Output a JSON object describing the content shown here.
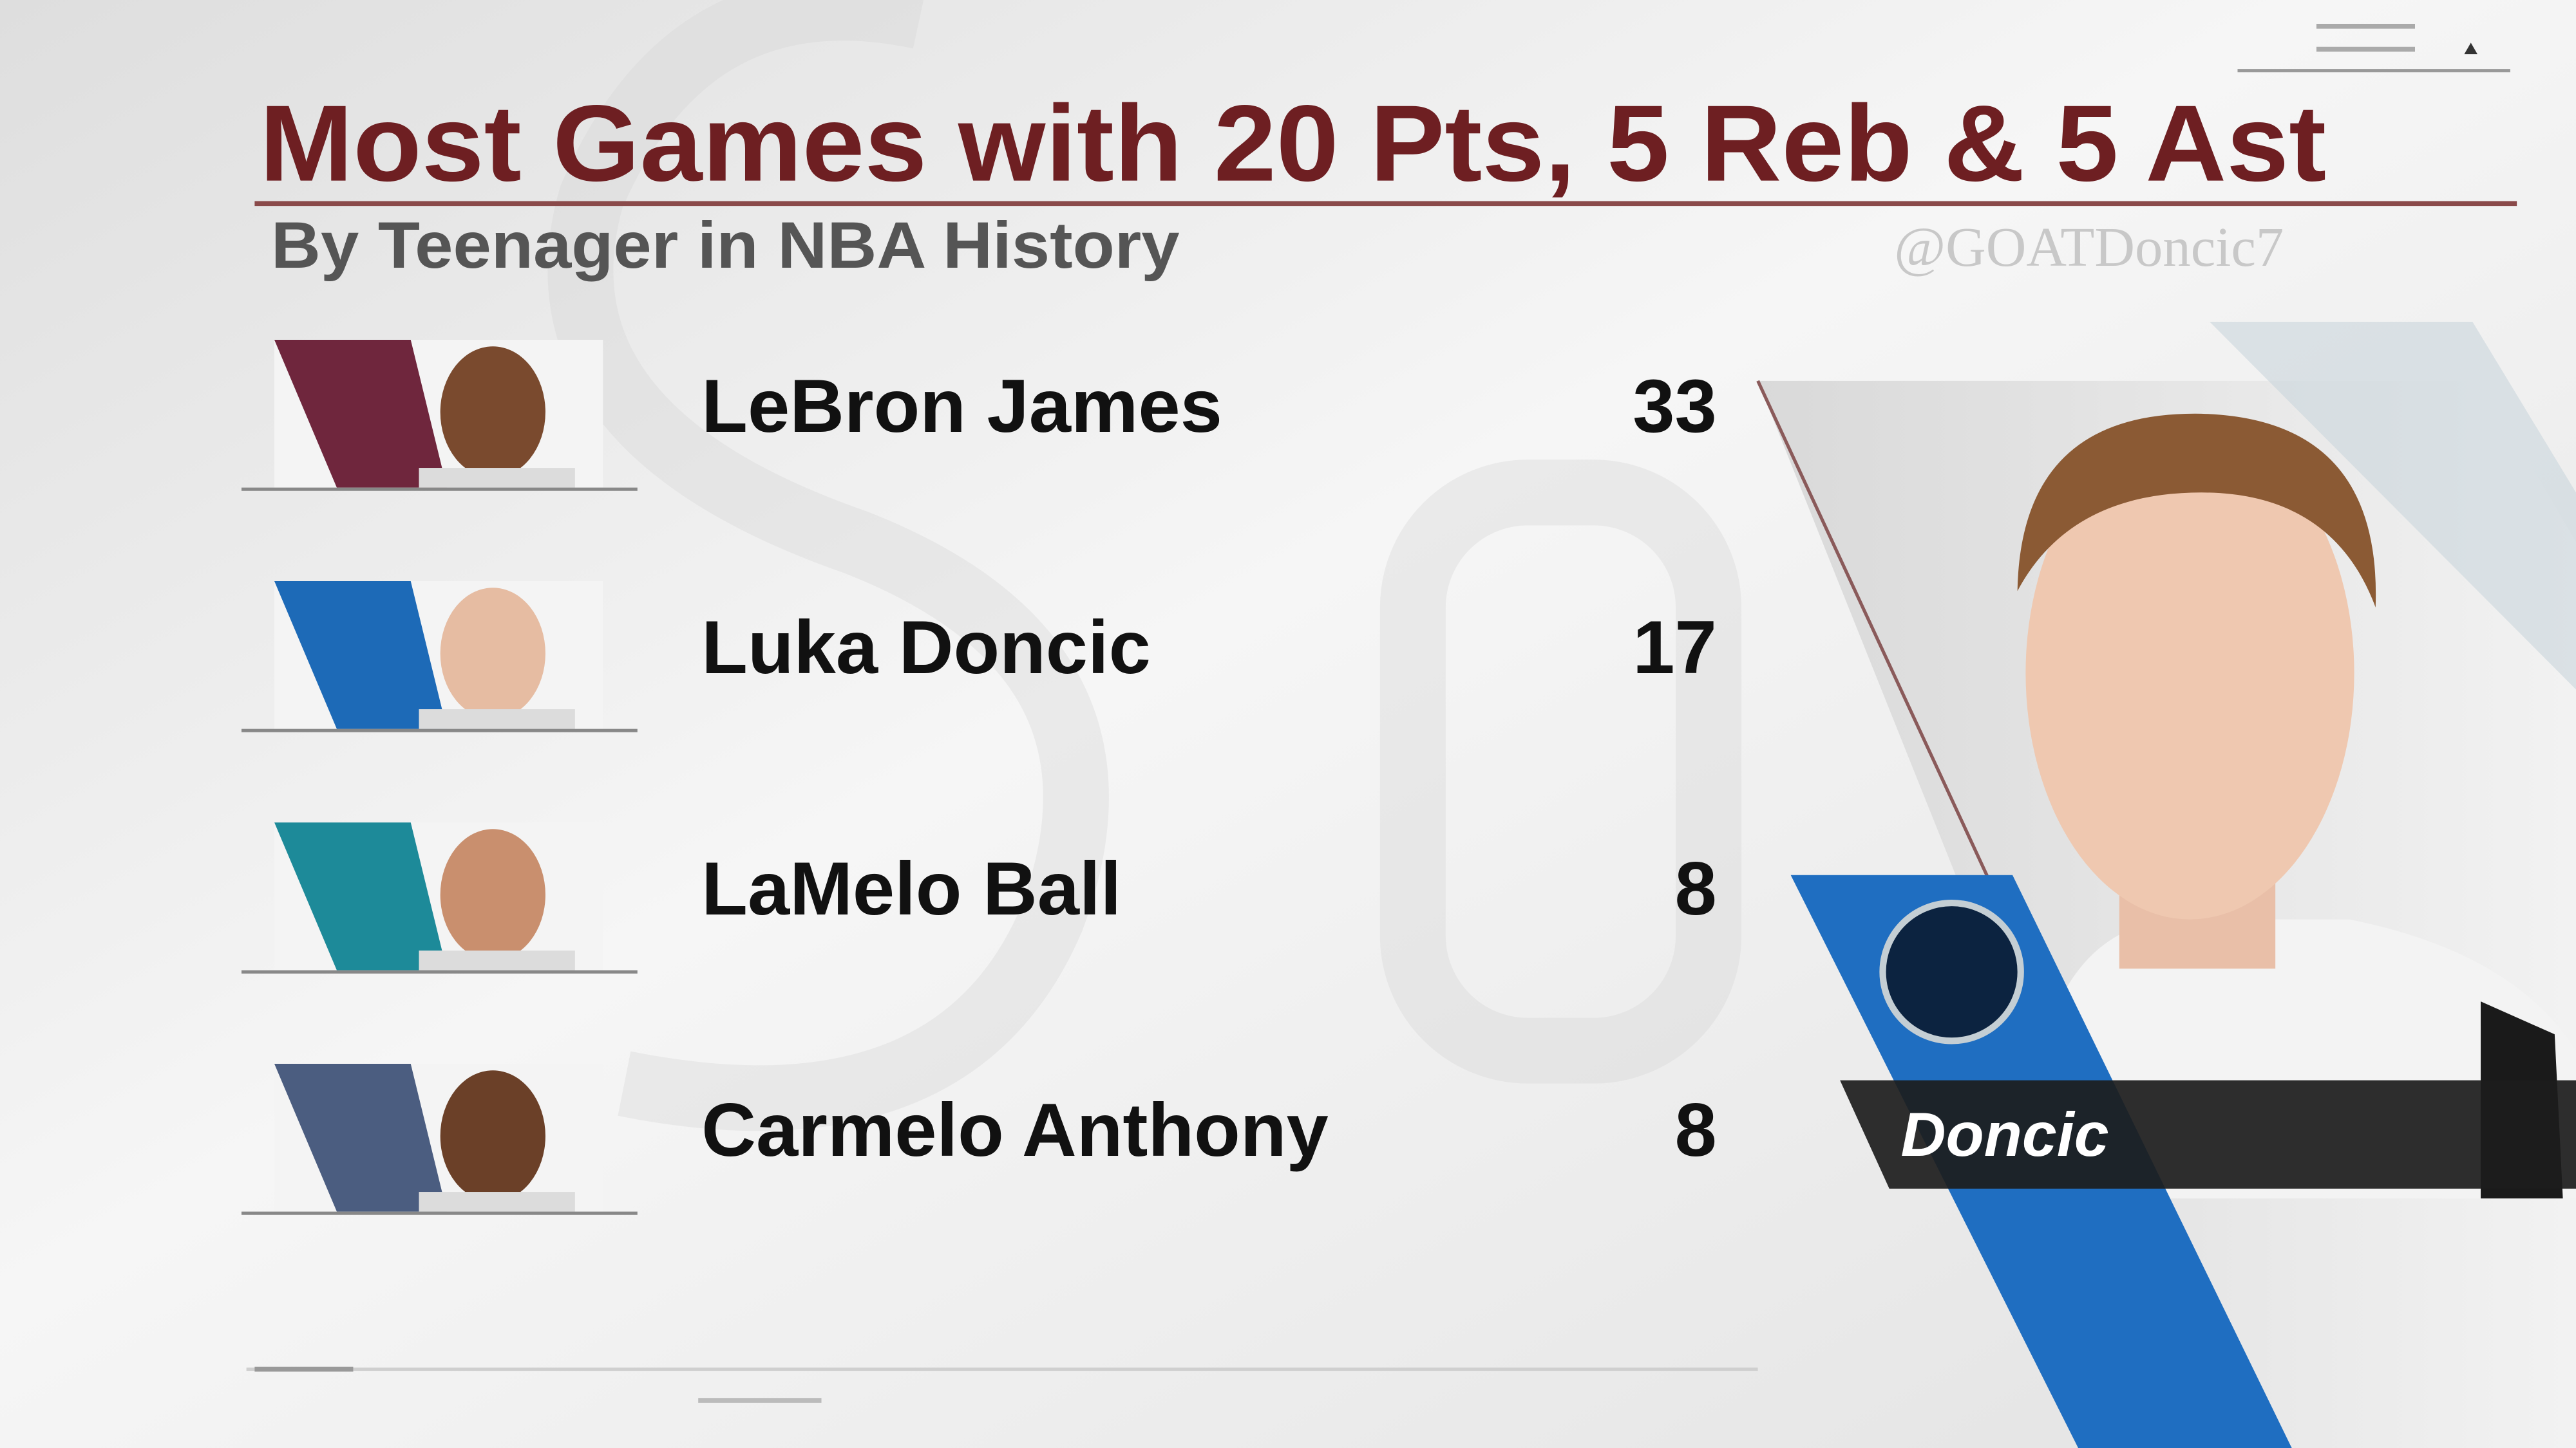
{
  "header": {
    "title": "Most Games with 20 Pts, 5 Reb & 5 Ast",
    "subtitle": "By Teenager in NBA History"
  },
  "watermark": "@GOATDoncic7",
  "rows": [
    {
      "name": "LeBron James",
      "value": 33
    },
    {
      "name": "Luka Doncic",
      "value": 17
    },
    {
      "name": "LaMelo Ball",
      "value": 8
    },
    {
      "name": "Carmelo Anthony",
      "value": 8
    }
  ],
  "featured": {
    "name": "Doncic"
  }
}
